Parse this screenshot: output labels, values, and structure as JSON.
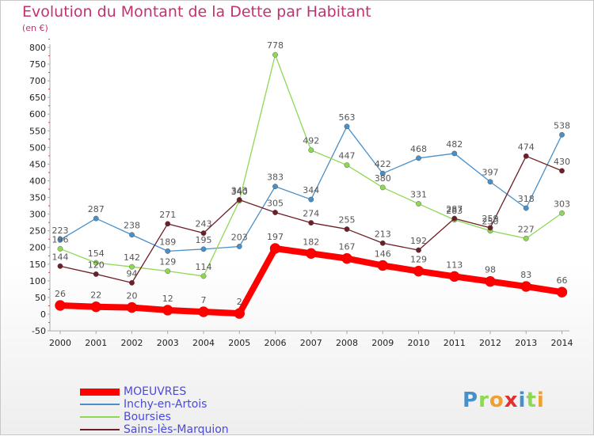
{
  "header": {
    "title": "Evolution du Montant de la Dette par Habitant",
    "unit": "(en €)"
  },
  "chart_data": {
    "type": "line",
    "x": [
      "2000",
      "2001",
      "2002",
      "2003",
      "2004",
      "2005",
      "2006",
      "2007",
      "2008",
      "2009",
      "2010",
      "2011",
      "2012",
      "2013",
      "2014"
    ],
    "ylim": [
      -50,
      800
    ],
    "yticks": [
      -50,
      0,
      50,
      100,
      150,
      200,
      250,
      300,
      350,
      400,
      450,
      500,
      550,
      600,
      650,
      700,
      750,
      800
    ],
    "grid": false,
    "legend_position": "bottom-left",
    "series": [
      {
        "name": "Inchy-en-Artois",
        "color": "#4a90c8",
        "values": [
          223,
          287,
          238,
          189,
          195,
          203,
          383,
          344,
          563,
          422,
          468,
          482,
          397,
          318,
          538
        ]
      },
      {
        "name": "Boursies",
        "color": "#8ed855",
        "values": [
          196,
          154,
          142,
          129,
          114,
          340,
          778,
          492,
          447,
          380,
          331,
          283,
          250,
          227,
          303
        ]
      },
      {
        "name": "Sains-lès-Marquion",
        "color": "#6e1e26",
        "values": [
          144,
          120,
          94,
          271,
          243,
          343,
          305,
          274,
          255,
          213,
          192,
          287,
          259,
          474,
          430
        ]
      },
      {
        "name": "MOEUVRES",
        "color": "#ff0000",
        "values": [
          26,
          22,
          20,
          12,
          7,
          2,
          197,
          182,
          167,
          146,
          129,
          113,
          98,
          83,
          66
        ]
      }
    ]
  },
  "legend_order": [
    "MOEUVRES",
    "Inchy-en-Artois",
    "Boursies",
    "Sains-lès-Marquion"
  ],
  "logo": {
    "letters": [
      "P",
      "r",
      "o",
      "x",
      "i",
      "t",
      "i"
    ],
    "colors": [
      "#4a90c8",
      "#8ed855",
      "#f0a030",
      "#e03030",
      "#4a90c8",
      "#8ed855",
      "#f0a030"
    ]
  }
}
